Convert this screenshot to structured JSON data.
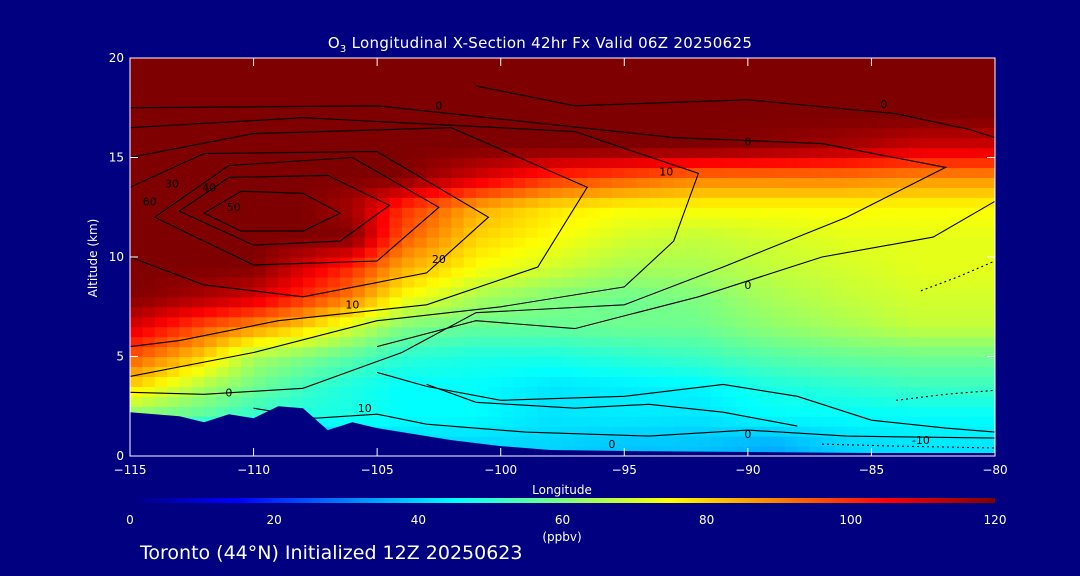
{
  "page": {
    "title_main": "O",
    "title_sub": "3",
    "title_rest": " Longitudinal X-Section 42hr  Fx Valid 06Z 20250625",
    "footer": "Toronto (44°N) Initialized 12Z 20250623"
  },
  "colors": {
    "background": "#000080",
    "colormap": [
      "#00007f",
      "#0000ff",
      "#007fff",
      "#00ffff",
      "#7fff7f",
      "#ffff00",
      "#ff7f00",
      "#ff0000",
      "#7f0000"
    ],
    "terrain": "#000080",
    "contour": "#000000"
  },
  "chart_data": {
    "type": "heatmap",
    "xlabel": "Longitude",
    "ylabel": "Altitude (km)",
    "xlim": [
      -115,
      -80
    ],
    "ylim": [
      0,
      20
    ],
    "xticks": [
      "−115",
      "−110",
      "−105",
      "−100",
      "−95",
      "−90",
      "−85",
      "−80"
    ],
    "yticks": [
      "0",
      "5",
      "10",
      "15",
      "20"
    ],
    "x": [
      -115,
      -112,
      -110,
      -108,
      -106,
      -104,
      -101,
      -98,
      -95,
      -92,
      -89,
      -86,
      -83,
      -80
    ],
    "y": [
      0.5,
      2,
      3.5,
      5,
      6.5,
      8,
      9.5,
      11,
      12.5,
      14,
      15.5,
      17,
      18.5,
      20
    ],
    "z": [
      [
        60,
        30,
        28,
        30,
        38,
        40,
        40,
        40,
        38,
        38,
        35,
        40,
        42,
        42
      ],
      [
        60,
        55,
        50,
        48,
        48,
        45,
        45,
        42,
        43,
        42,
        45,
        45,
        45,
        45
      ],
      [
        80,
        65,
        58,
        52,
        48,
        45,
        45,
        42,
        43,
        44,
        48,
        50,
        52,
        52
      ],
      [
        95,
        80,
        65,
        60,
        55,
        50,
        48,
        48,
        50,
        52,
        55,
        57,
        58,
        58
      ],
      [
        110,
        95,
        88,
        80,
        70,
        60,
        57,
        57,
        58,
        58,
        62,
        65,
        68,
        68
      ],
      [
        120,
        115,
        110,
        100,
        90,
        75,
        65,
        60,
        58,
        60,
        65,
        68,
        70,
        70
      ],
      [
        120,
        120,
        120,
        110,
        100,
        85,
        75,
        70,
        65,
        65,
        68,
        70,
        72,
        72
      ],
      [
        120,
        120,
        120,
        120,
        120,
        95,
        80,
        75,
        70,
        68,
        70,
        72,
        72,
        72
      ],
      [
        120,
        120,
        120,
        120,
        115,
        100,
        85,
        78,
        75,
        75,
        75,
        75,
        75,
        75
      ],
      [
        120,
        120,
        120,
        120,
        120,
        120,
        110,
        100,
        95,
        90,
        90,
        90,
        88,
        88
      ],
      [
        120,
        120,
        120,
        120,
        120,
        120,
        120,
        120,
        120,
        120,
        118,
        115,
        110,
        110
      ],
      [
        120,
        120,
        120,
        120,
        120,
        120,
        120,
        120,
        120,
        120,
        120,
        120,
        120,
        120
      ],
      [
        120,
        120,
        120,
        120,
        120,
        120,
        120,
        120,
        120,
        120,
        120,
        120,
        120,
        120
      ],
      [
        120,
        120,
        120,
        120,
        120,
        120,
        120,
        120,
        120,
        120,
        120,
        120,
        120,
        120
      ]
    ],
    "terrain_km": [
      [
        -115,
        2.2
      ],
      [
        -113,
        2.0
      ],
      [
        -112,
        1.7
      ],
      [
        -111,
        2.1
      ],
      [
        -110,
        1.9
      ],
      [
        -109,
        2.5
      ],
      [
        -108,
        2.4
      ],
      [
        -107,
        1.3
      ],
      [
        -106,
        1.7
      ],
      [
        -105,
        1.4
      ],
      [
        -104,
        1.2
      ],
      [
        -103,
        1.0
      ],
      [
        -102,
        0.8
      ],
      [
        -100,
        0.5
      ],
      [
        -98,
        0.3
      ],
      [
        -95,
        0.25
      ],
      [
        -90,
        0.2
      ],
      [
        -85,
        0.15
      ],
      [
        -80,
        0.15
      ]
    ],
    "contour_labels": [
      {
        "text": "0",
        "lon": -102.5,
        "alt": 17.4
      },
      {
        "text": "0",
        "lon": -84.5,
        "alt": 17.5
      },
      {
        "text": "0",
        "lon": -90,
        "alt": 15.6
      },
      {
        "text": "10",
        "lon": -93.3,
        "alt": 14.1
      },
      {
        "text": "20",
        "lon": -102.5,
        "alt": 9.7
      },
      {
        "text": "10",
        "lon": -106,
        "alt": 7.4
      },
      {
        "text": "0",
        "lon": -90,
        "alt": 8.4
      },
      {
        "text": "0",
        "lon": -111,
        "alt": 3
      },
      {
        "text": "10",
        "lon": -105.5,
        "alt": 2.2
      },
      {
        "text": "0",
        "lon": -95.5,
        "alt": 0.4
      },
      {
        "text": "0",
        "lon": -90,
        "alt": 0.9
      },
      {
        "text": "-10",
        "lon": -83,
        "alt": 0.6
      },
      {
        "text": "30",
        "lon": -113.3,
        "alt": 13.5
      },
      {
        "text": "40",
        "lon": -111.8,
        "alt": 13.3
      },
      {
        "text": "50",
        "lon": -110.8,
        "alt": 12.3
      },
      {
        "text": "60",
        "lon": -114.2,
        "alt": 12.6
      }
    ],
    "colorbar": {
      "range": [
        0,
        120
      ],
      "ticks": [
        "0",
        "20",
        "40",
        "60",
        "80",
        "100",
        "120"
      ],
      "label": "(ppbv)"
    }
  }
}
